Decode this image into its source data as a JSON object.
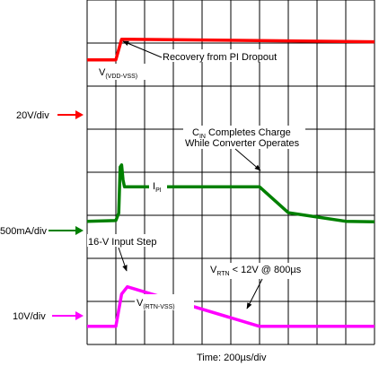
{
  "chart_data": {
    "type": "line",
    "title": "",
    "xlabel": "Time: 200µs/div",
    "x_unit": "µs",
    "x_per_div": 200,
    "grid": true,
    "grid_divisions": {
      "x": 10,
      "y": 8
    },
    "xlim": [
      0,
      2000
    ],
    "ylim": [
      0,
      8
    ],
    "series": [
      {
        "name": "V(VDD-VSS)",
        "color": "#ff0000",
        "scale": "20V/div",
        "points": [
          [
            0,
            6.61
          ],
          [
            200,
            6.61
          ],
          [
            240,
            7.09
          ],
          [
            260,
            7.09
          ],
          [
            2000,
            7.03
          ]
        ]
      },
      {
        "name": "IPI",
        "color": "#008000",
        "scale": "500mA/div",
        "points": [
          [
            0,
            2.86
          ],
          [
            200,
            2.88
          ],
          [
            220,
            3.05
          ],
          [
            230,
            4.12
          ],
          [
            240,
            4.17
          ],
          [
            250,
            3.82
          ],
          [
            260,
            3.66
          ],
          [
            1200,
            3.66
          ],
          [
            1400,
            3.06
          ],
          [
            1800,
            2.86
          ],
          [
            2000,
            2.85
          ]
        ]
      },
      {
        "name": "V(RTN-VSS)",
        "color": "#ff00ff",
        "scale": "10V/div",
        "points": [
          [
            0,
            0.42
          ],
          [
            200,
            0.42
          ],
          [
            240,
            1.17
          ],
          [
            280,
            1.34
          ],
          [
            1200,
            0.42
          ],
          [
            2000,
            0.42
          ]
        ]
      }
    ],
    "channel_markers": [
      {
        "label": "20V/div",
        "color": "#ff0000"
      },
      {
        "label": "500mA/div",
        "color": "#008000"
      },
      {
        "label": "10V/div",
        "color": "#ff00ff"
      }
    ],
    "annotations": [
      {
        "id": "recovery",
        "text": "Recovery from PI Dropout"
      },
      {
        "id": "cin1",
        "text_main": "C",
        "text_sub": "IN",
        "text_rest": " Completes Charge"
      },
      {
        "id": "cin2",
        "text": "While Converter Operates"
      },
      {
        "id": "step",
        "text": "16-V Input Step"
      },
      {
        "id": "vrtn",
        "text_main": "V",
        "text_sub": "RTN",
        "text_rest": " < 12V @ 800µs"
      }
    ],
    "trace_labels": [
      {
        "id": "vdd",
        "main": "V",
        "sub": "(VDD-VSS)"
      },
      {
        "id": "ipi",
        "main": "I",
        "sub": "PI"
      },
      {
        "id": "rtn",
        "main": "V",
        "sub": "(RTN-VSS)"
      }
    ]
  }
}
